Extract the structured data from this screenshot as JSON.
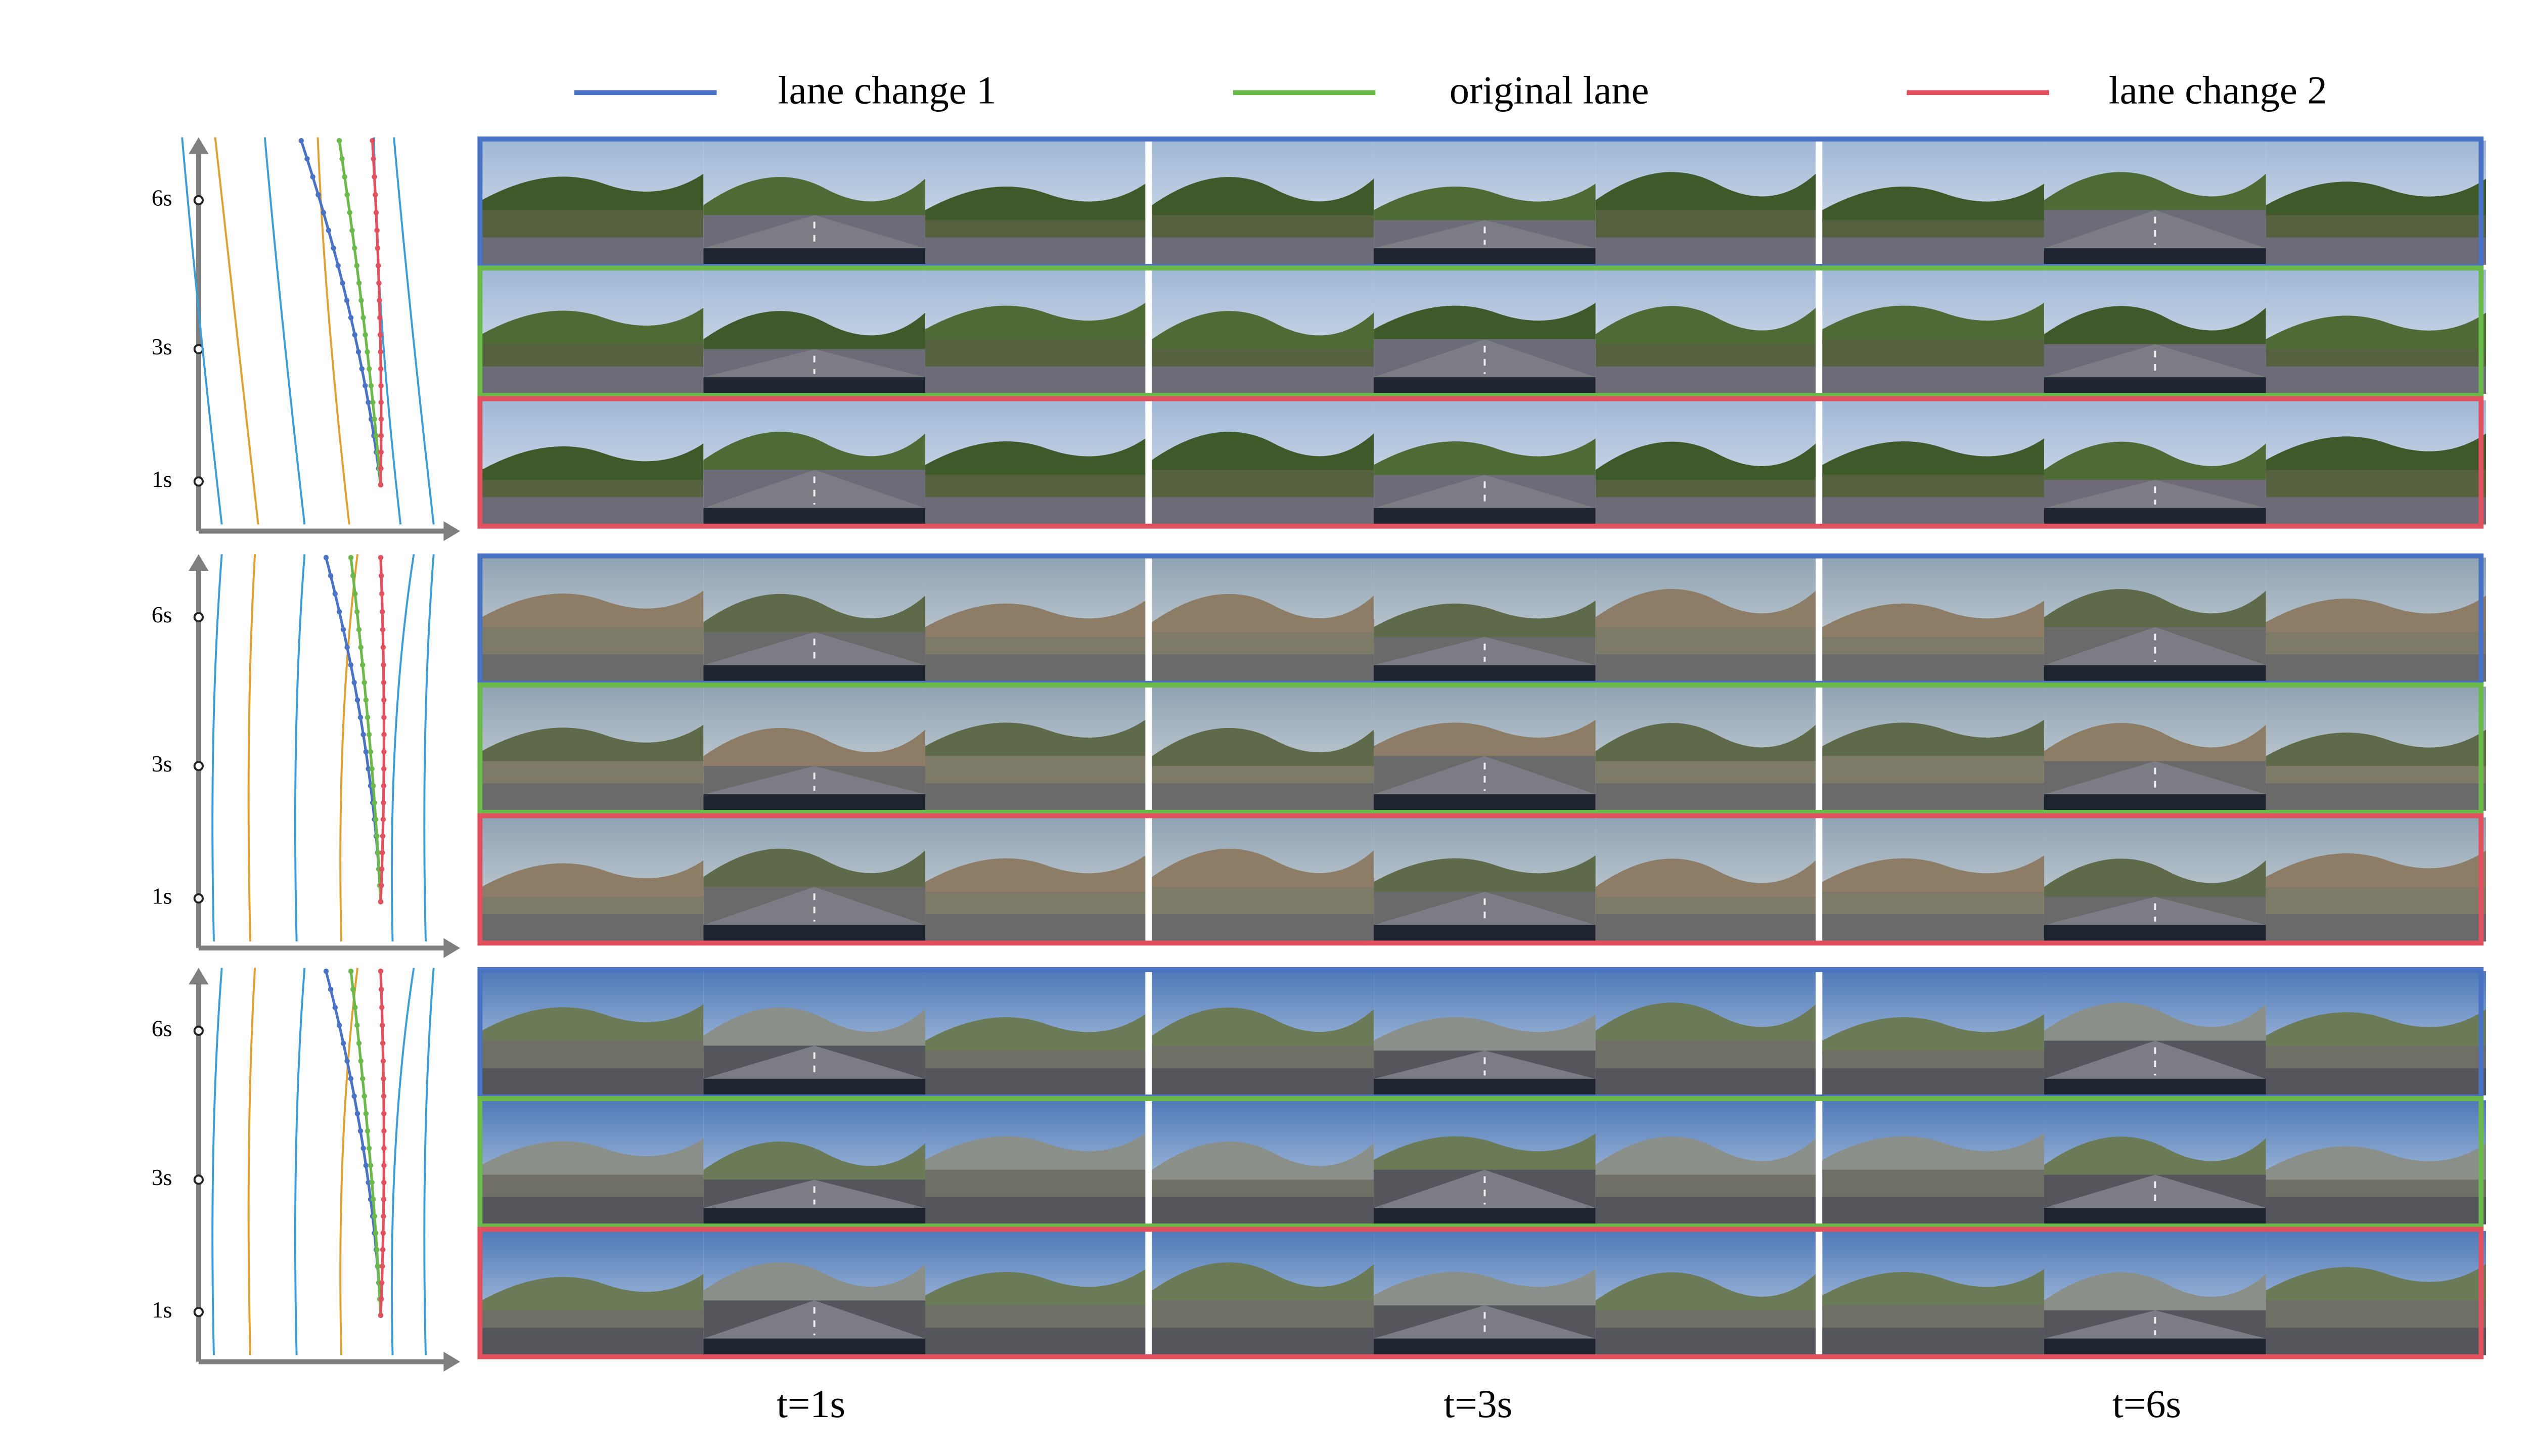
{
  "legend": [
    {
      "label": "lane change 1",
      "color": "#4a72c4"
    },
    {
      "label": "original lane",
      "color": "#6ab94a"
    },
    {
      "label": "lane change 2",
      "color": "#e0505e"
    }
  ],
  "panels": [
    {
      "y_ticks": [
        "6s",
        "3s",
        "1s"
      ]
    },
    {
      "y_ticks": [
        "6s",
        "3s",
        "1s"
      ]
    },
    {
      "y_ticks": [
        "6s",
        "3s",
        "1s"
      ]
    }
  ],
  "time_labels": [
    "t=1s",
    "t=3s",
    "t=6s"
  ]
}
